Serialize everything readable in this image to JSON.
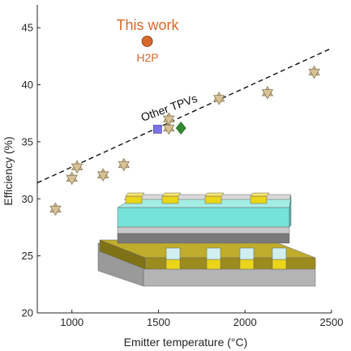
{
  "chart_data": {
    "type": "scatter",
    "xlabel": "Emitter temperature (°C)",
    "ylabel": "Efficiency (%)",
    "xlim": [
      800,
      2500
    ],
    "ylim": [
      20,
      47
    ],
    "xticks": [
      "1000",
      "1500",
      "2000",
      "2500"
    ],
    "yticks": [
      "20",
      "25",
      "30",
      "35",
      "40",
      "45"
    ],
    "grid": false,
    "annotations": {
      "this_work": "This work",
      "h2p": "H2P",
      "trend": "Other TPVs"
    },
    "trend_line": {
      "x": [
        800,
        2500
      ],
      "y": [
        31.4,
        43.2
      ]
    },
    "series": [
      {
        "marker": "star",
        "color": "#d7c196",
        "x": [
          905,
          1000,
          1030,
          1180,
          1300,
          1560,
          1560,
          1850,
          2130,
          2400
        ],
        "y": [
          29.1,
          31.8,
          32.8,
          32.1,
          33.0,
          36.2,
          37.0,
          38.8,
          39.3,
          41.1
        ]
      },
      {
        "marker": "circle",
        "color": "#d9692a",
        "x": [
          1435
        ],
        "y": [
          43.8
        ]
      },
      {
        "marker": "square",
        "color": "#7b72e6",
        "x": [
          1495
        ],
        "y": [
          36.1
        ]
      },
      {
        "marker": "diamond",
        "color": "#2e8b2e",
        "x": [
          1630
        ],
        "y": [
          36.2
        ]
      }
    ]
  },
  "colors": {
    "highlight_text": "#d9692a",
    "inset_base": "#b9a728",
    "inset_cyan": "#78e6dc",
    "inset_gold": "#e7d51c"
  }
}
